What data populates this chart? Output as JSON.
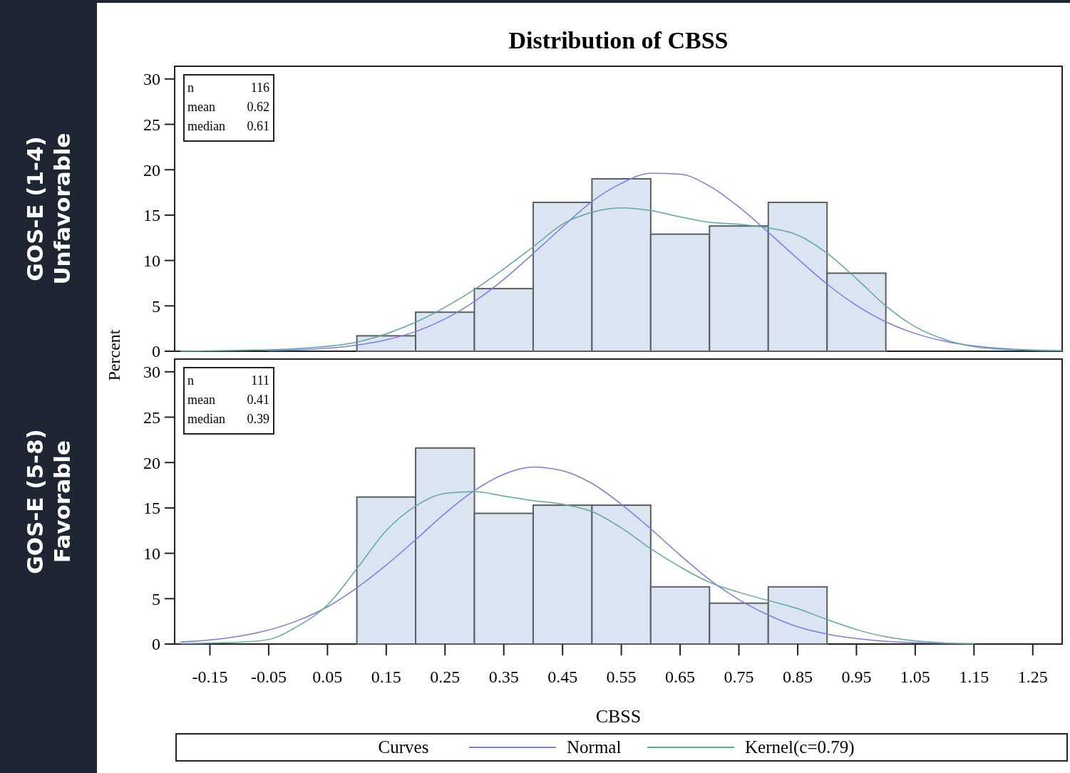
{
  "chart_data": [
    {
      "type": "histogram",
      "title": "Distribution of CBSS",
      "subtitle": "GOS-E (1-4)\nUnfavorable",
      "ylabel": "Percent",
      "annotations": [
        "n 116",
        "mean 0.62",
        "median 0.61"
      ],
      "bins": [
        0.1,
        0.2,
        0.3,
        0.4,
        0.5,
        0.6,
        0.7,
        0.8,
        0.9,
        1.0
      ],
      "values": [
        1.7,
        4.3,
        6.9,
        16.4,
        19.0,
        12.9,
        13.8,
        16.4,
        8.6
      ],
      "color": "#dbe5f1",
      "xlim": [
        -0.21,
        1.3
      ],
      "ylim": [
        0,
        31.4
      ],
      "yticks": [
        0,
        5,
        10,
        15,
        20,
        25,
        30
      ],
      "tick_labels": "y",
      "series": [
        {
          "type": "line",
          "color": "#7b7bea",
          "x": [
            -0.05,
            0,
            0.05,
            0.1,
            0.15,
            0.2,
            0.25,
            0.3,
            0.35,
            0.4,
            0.45,
            0.5,
            0.55,
            0.6,
            0.65,
            0.7,
            0.75,
            0.8,
            0.85,
            0.9,
            0.95,
            1.0,
            1.05,
            1.1,
            1.15,
            1.2,
            1.25,
            1.3
          ],
          "values": [
            0.07,
            0.16,
            0.34,
            0.67,
            1.25,
            2.17,
            3.56,
            5.48,
            7.92,
            10.76,
            13.7,
            16.5,
            18.5,
            19.6,
            19.5,
            18.2,
            15.9,
            13.1,
            10.2,
            7.4,
            5.06,
            3.24,
            1.95,
            1.1,
            0.59,
            0.29,
            0.14,
            0.06
          ]
        },
        {
          "type": "line",
          "color": "#5fa8a0",
          "x": [
            -0.2,
            -0.1,
            0,
            0.1,
            0.2,
            0.3,
            0.4,
            0.45,
            0.5,
            0.55,
            0.6,
            0.65,
            0.7,
            0.75,
            0.8,
            0.85,
            0.9,
            0.95,
            1.0,
            1.05,
            1.1,
            1.15,
            1.2,
            1.3
          ],
          "values": [
            0,
            0.1,
            0.3,
            1.0,
            3.2,
            6.8,
            11.5,
            14.0,
            15.3,
            15.8,
            15.5,
            14.8,
            14.2,
            14.0,
            13.6,
            12.8,
            10.8,
            8.0,
            5.0,
            2.7,
            1.3,
            0.5,
            0.2,
            0.05
          ]
        }
      ]
    },
    {
      "type": "histogram",
      "subtitle": "GOS-E (5-8)\nFavorable",
      "xlabel": "CBSS",
      "annotations": [
        "n 111",
        "mean 0.41",
        "median 0.39"
      ],
      "legend": "bottom",
      "legend_title": "Curves",
      "bins": [
        0.1,
        0.2,
        0.3,
        0.4,
        0.5,
        0.6,
        0.7,
        0.8,
        0.9
      ],
      "values": [
        16.2,
        21.6,
        14.4,
        15.3,
        15.3,
        6.3,
        4.5,
        6.3
      ],
      "color": "#dbe5f1",
      "xlim": [
        -0.21,
        1.3
      ],
      "xticks": [
        -0.15,
        -0.05,
        0.05,
        0.15,
        0.25,
        0.35,
        0.45,
        0.55,
        0.65,
        0.75,
        0.85,
        0.95,
        1.05,
        1.15,
        1.25
      ],
      "ylim": [
        0,
        31.4
      ],
      "yticks": [
        0,
        5,
        10,
        15,
        20,
        25,
        30
      ],
      "series": [
        {
          "type": "line",
          "name": "Normal",
          "color": "#7b7bea",
          "x": [
            -0.2,
            -0.15,
            -0.1,
            -0.05,
            0,
            0.05,
            0.1,
            0.15,
            0.2,
            0.25,
            0.3,
            0.35,
            0.4,
            0.45,
            0.5,
            0.55,
            0.6,
            0.65,
            0.7,
            0.75,
            0.8,
            0.85,
            0.9,
            0.95,
            1.0,
            1.05,
            1.1,
            1.15
          ],
          "values": [
            0.23,
            0.46,
            0.87,
            1.55,
            2.6,
            4.1,
            6.2,
            8.7,
            11.5,
            14.4,
            16.9,
            18.7,
            19.5,
            19.1,
            17.7,
            15.4,
            12.7,
            9.8,
            7.1,
            4.9,
            3.2,
            1.9,
            1.1,
            0.6,
            0.3,
            0.15,
            0.07,
            0.03
          ]
        },
        {
          "type": "line",
          "name": "Kernel(c=0.79)",
          "color": "#5fa8a0",
          "x": [
            -0.2,
            -0.1,
            -0.05,
            0,
            0.05,
            0.1,
            0.15,
            0.2,
            0.25,
            0.3,
            0.35,
            0.4,
            0.45,
            0.5,
            0.55,
            0.6,
            0.65,
            0.7,
            0.75,
            0.8,
            0.85,
            0.9,
            0.95,
            1.0,
            1.05,
            1.1,
            1.15
          ],
          "values": [
            0.05,
            0.2,
            0.5,
            2.0,
            4.3,
            8.3,
            12.5,
            15.2,
            16.6,
            16.8,
            16.3,
            15.8,
            15.4,
            14.6,
            12.8,
            10.5,
            8.5,
            6.8,
            5.7,
            4.8,
            3.9,
            2.7,
            1.6,
            0.8,
            0.35,
            0.12,
            0.03
          ]
        }
      ]
    }
  ]
}
